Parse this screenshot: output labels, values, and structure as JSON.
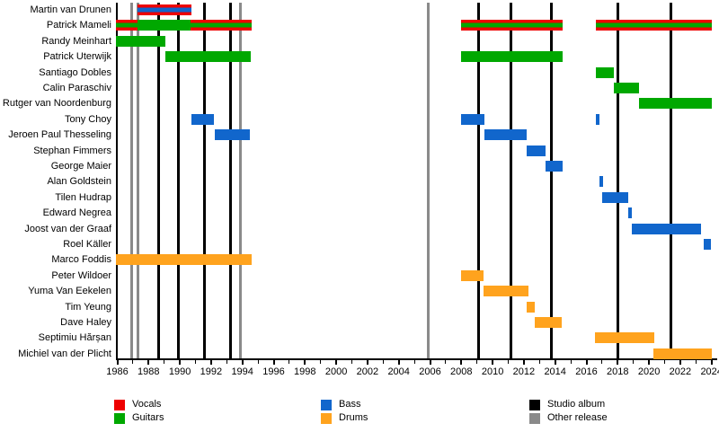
{
  "page": {
    "background": "#FFFFFF"
  },
  "chart_data": {
    "type": "timeline",
    "title": "",
    "x_axis": {
      "start_year": 1986,
      "end_year": 2024,
      "major_tick_step": 2,
      "minor_tick_step": 1,
      "tick_labels": [
        "1986",
        "1988",
        "1990",
        "1992",
        "1994",
        "1996",
        "1998",
        "2000",
        "2002",
        "2004",
        "2006",
        "2008",
        "2010",
        "2012",
        "2014",
        "2016",
        "2018",
        "2020",
        "2022",
        "2024"
      ]
    },
    "colors": {
      "vocals": "#EE0000",
      "guitars": "#00A800",
      "bass": "#1166CC",
      "drums": "#FFA31E",
      "studio": "#000000",
      "other": "#8A8A8A",
      "axis": "#000000"
    },
    "legend": [
      {
        "key": "vocals",
        "label": "Vocals"
      },
      {
        "key": "guitars",
        "label": "Guitars"
      },
      {
        "key": "bass",
        "label": "Bass"
      },
      {
        "key": "drums",
        "label": "Drums"
      },
      {
        "key": "studio",
        "label": "Studio album"
      },
      {
        "key": "other",
        "label": "Other release"
      }
    ],
    "members": [
      {
        "name": "Martin van Drunen",
        "segments": [
          {
            "roles": [
              "vocals",
              "bass"
            ],
            "start": 1987.3,
            "end": 1990.75
          }
        ]
      },
      {
        "name": "Patrick Mameli",
        "segments": [
          {
            "roles": [
              "vocals",
              "guitars"
            ],
            "start": 1986.0,
            "end": 1987.3
          },
          {
            "roles": [
              "guitars"
            ],
            "start": 1987.3,
            "end": 1990.7
          },
          {
            "roles": [
              "vocals",
              "guitars"
            ],
            "start": 1990.7,
            "end": 1994.6
          },
          {
            "roles": [
              "vocals",
              "guitars"
            ],
            "start": 2008.0,
            "end": 2014.45
          },
          {
            "roles": [
              "vocals",
              "guitars"
            ],
            "start": 2016.6,
            "end": 2024.0
          }
        ]
      },
      {
        "name": "Randy Meinhart",
        "segments": [
          {
            "roles": [
              "guitars"
            ],
            "start": 1986.0,
            "end": 1989.1
          }
        ]
      },
      {
        "name": "Patrick Uterwijk",
        "segments": [
          {
            "roles": [
              "guitars"
            ],
            "start": 1989.1,
            "end": 1994.55
          },
          {
            "roles": [
              "guitars"
            ],
            "start": 2008.0,
            "end": 2014.45
          }
        ]
      },
      {
        "name": "Santiago Dobles",
        "segments": [
          {
            "roles": [
              "guitars"
            ],
            "start": 2016.6,
            "end": 2017.75
          }
        ]
      },
      {
        "name": "Calin Paraschiv",
        "segments": [
          {
            "roles": [
              "guitars"
            ],
            "start": 2017.75,
            "end": 2019.35
          }
        ]
      },
      {
        "name": "Rutger van Noordenburg",
        "segments": [
          {
            "roles": [
              "guitars"
            ],
            "start": 2019.35,
            "end": 2024.0
          }
        ]
      },
      {
        "name": "Tony Choy",
        "segments": [
          {
            "roles": [
              "bass"
            ],
            "start": 1990.75,
            "end": 1992.2
          },
          {
            "roles": [
              "bass"
            ],
            "start": 2008.0,
            "end": 2009.5
          },
          {
            "roles": [
              "bass"
            ],
            "start": 2016.6,
            "end": 2016.85
          }
        ]
      },
      {
        "name": "Jeroen Paul Thesseling",
        "segments": [
          {
            "roles": [
              "bass"
            ],
            "start": 1992.25,
            "end": 1994.5
          },
          {
            "roles": [
              "bass"
            ],
            "start": 2009.5,
            "end": 2012.2
          }
        ]
      },
      {
        "name": "Stephan Fimmers",
        "segments": [
          {
            "roles": [
              "bass"
            ],
            "start": 2012.2,
            "end": 2013.4
          }
        ]
      },
      {
        "name": "George Maier",
        "segments": [
          {
            "roles": [
              "bass"
            ],
            "start": 2013.4,
            "end": 2014.5
          }
        ]
      },
      {
        "name": "Alan Goldstein",
        "segments": [
          {
            "roles": [
              "bass"
            ],
            "start": 2016.85,
            "end": 2017.05
          }
        ]
      },
      {
        "name": "Tilen Hudrap",
        "segments": [
          {
            "roles": [
              "bass"
            ],
            "start": 2017.0,
            "end": 2018.65
          }
        ]
      },
      {
        "name": "Edward Negrea",
        "segments": [
          {
            "roles": [
              "bass"
            ],
            "start": 2018.65,
            "end": 2018.9
          }
        ]
      },
      {
        "name": "Joost van der Graaf",
        "segments": [
          {
            "roles": [
              "bass"
            ],
            "start": 2018.9,
            "end": 2023.3
          }
        ]
      },
      {
        "name": "Roel Käller",
        "segments": [
          {
            "roles": [
              "bass"
            ],
            "start": 2023.5,
            "end": 2023.95
          }
        ]
      },
      {
        "name": "Marco Foddis",
        "segments": [
          {
            "roles": [
              "drums"
            ],
            "start": 1986.0,
            "end": 1994.6
          }
        ]
      },
      {
        "name": "Peter Wildoer",
        "segments": [
          {
            "roles": [
              "drums"
            ],
            "start": 2008.0,
            "end": 2009.4
          }
        ]
      },
      {
        "name": "Yuma Van Eekelen",
        "segments": [
          {
            "roles": [
              "drums"
            ],
            "start": 2009.4,
            "end": 2012.3
          }
        ]
      },
      {
        "name": "Tim Yeung",
        "segments": [
          {
            "roles": [
              "drums"
            ],
            "start": 2012.2,
            "end": 2012.7
          }
        ]
      },
      {
        "name": "Dave Haley",
        "segments": [
          {
            "roles": [
              "drums"
            ],
            "start": 2012.7,
            "end": 2014.4
          }
        ]
      },
      {
        "name": "Septimiu Hărșan",
        "segments": [
          {
            "roles": [
              "drums"
            ],
            "start": 2016.55,
            "end": 2020.35
          }
        ]
      },
      {
        "name": "Michiel van der Plicht",
        "segments": [
          {
            "roles": [
              "drums"
            ],
            "start": 2020.3,
            "end": 2024.0
          }
        ]
      }
    ],
    "releases": {
      "studio_albums": [
        1988.65,
        1989.9,
        1991.55,
        1993.25,
        2009.1,
        2011.2,
        2013.75,
        2018.0,
        2021.4
      ],
      "other_releases": [
        1986.9,
        1987.3,
        1993.9,
        2005.9
      ]
    }
  }
}
